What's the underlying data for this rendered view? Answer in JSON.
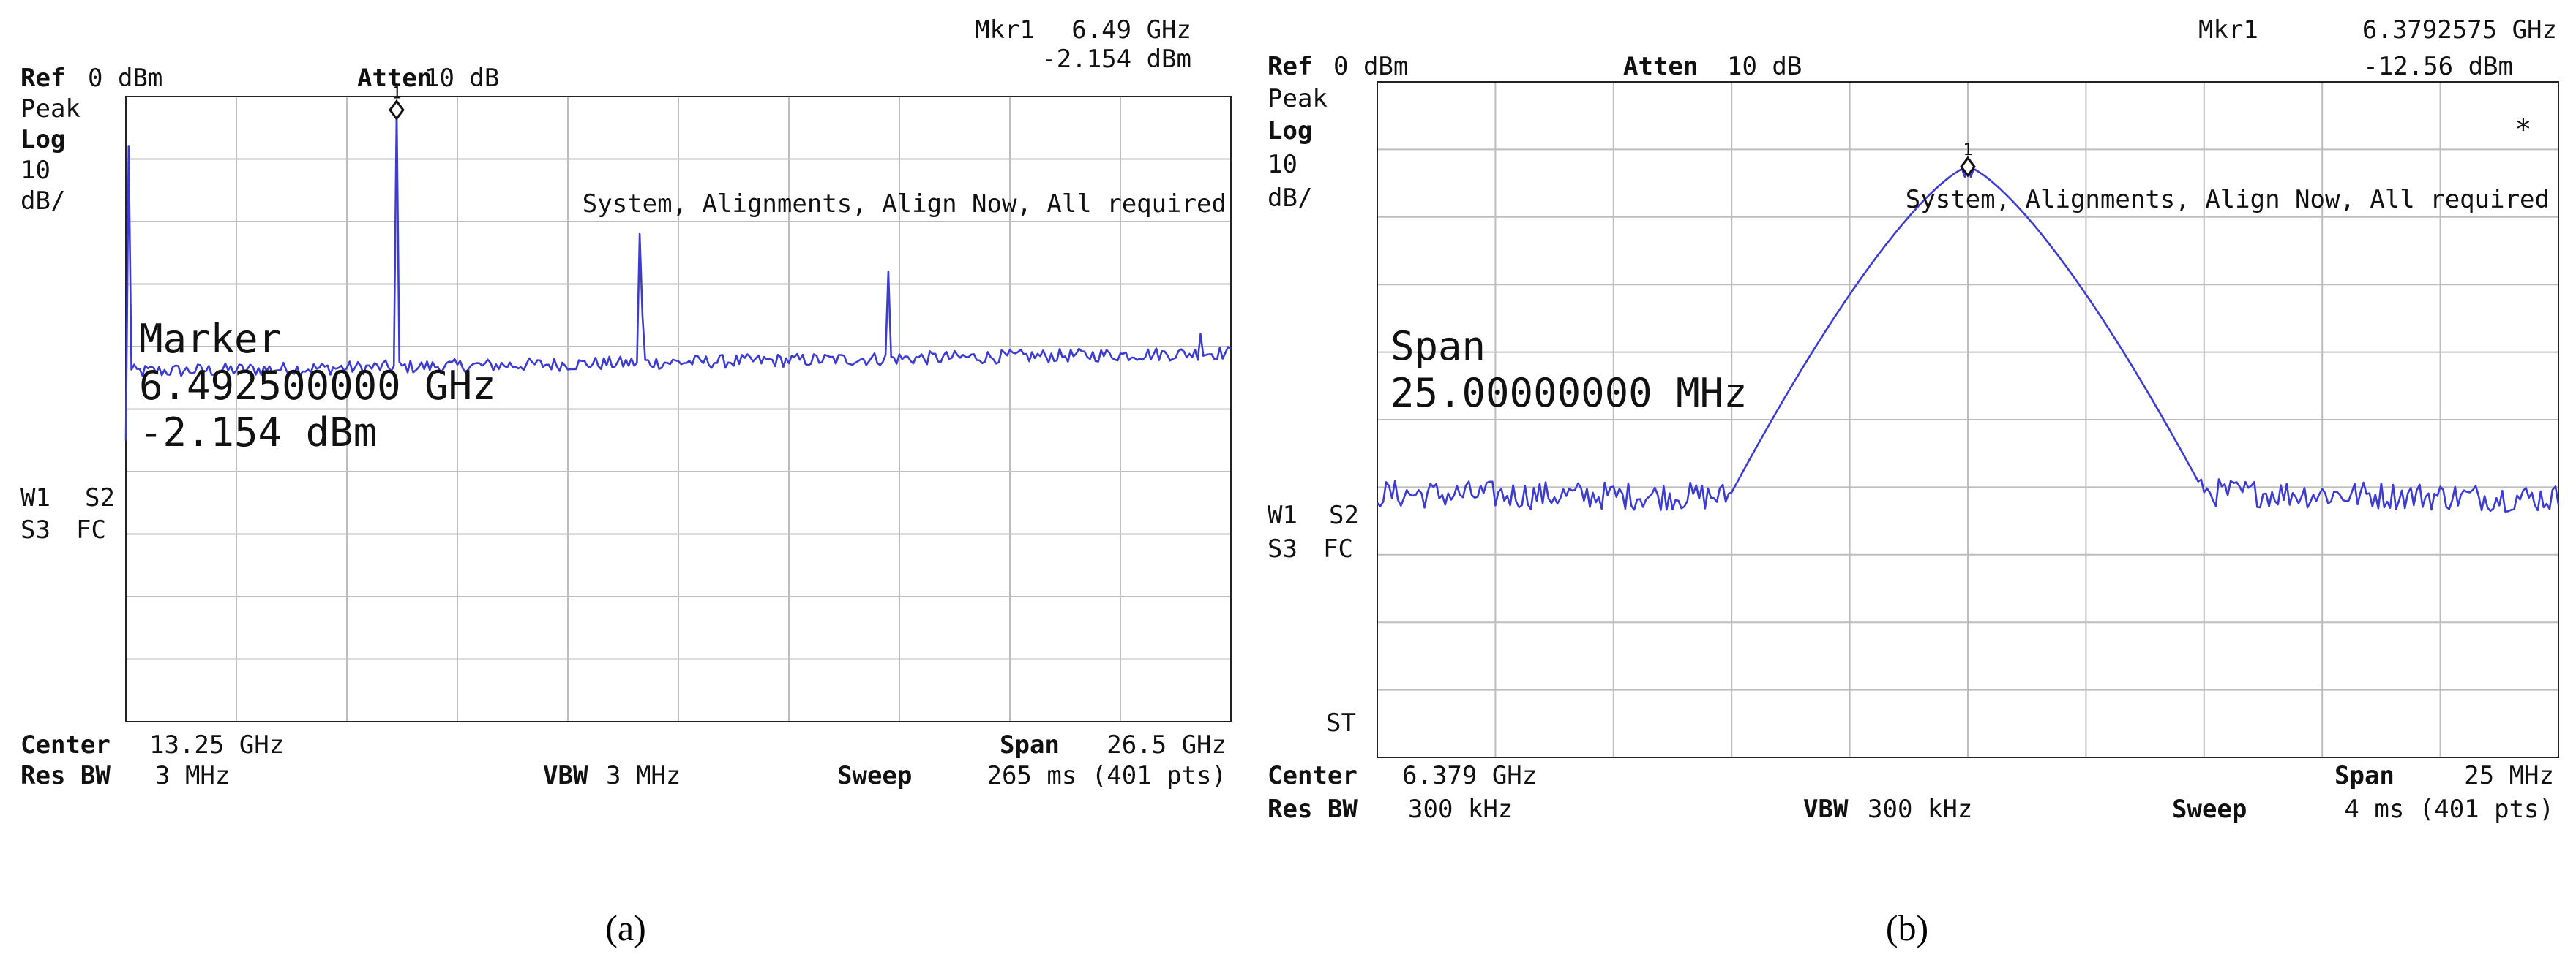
{
  "panels": [
    {
      "id": "a",
      "caption": "(a)",
      "header": {
        "mkr_label": "Mkr1",
        "mkr_freq": "6.49 GHz",
        "mkr_amp": "-2.154 dBm",
        "ref_label": "Ref",
        "ref_value": "0 dBm",
        "atten_label": "Atten",
        "atten_value": "10 dB",
        "det": "Peak",
        "scale_label": "Log",
        "scale_value": "10",
        "scale_unit": "dB/",
        "message": "System, Alignments, Align Now, All required",
        "star": ""
      },
      "side": {
        "w1": "W1",
        "s2": "S2",
        "s3": "S3",
        "fc": "FC",
        "st": ""
      },
      "overlay": {
        "line1": "Marker",
        "line2": "6.492500000 GHz",
        "line3": "-2.154 dBm"
      },
      "footer": {
        "center_label": "Center",
        "center_value": "13.25 GHz",
        "span_label": "Span",
        "span_value": "26.5 GHz",
        "rbw_label": "Res BW",
        "rbw_value": "3 MHz",
        "vbw_label": "VBW",
        "vbw_value": "3 MHz",
        "sweep_label": "Sweep",
        "sweep_value": "265 ms (401 pts)"
      },
      "marker_number": "1"
    },
    {
      "id": "b",
      "caption": "(b)",
      "header": {
        "mkr_label": "Mkr1",
        "mkr_freq": "6.3792575 GHz",
        "mkr_amp": "-12.56 dBm",
        "ref_label": "Ref",
        "ref_value": "0 dBm",
        "atten_label": "Atten",
        "atten_value": "10 dB",
        "det": "Peak",
        "scale_label": "Log",
        "scale_value": "10",
        "scale_unit": "dB/",
        "message": "System, Alignments, Align Now, All required",
        "star": "*"
      },
      "side": {
        "w1": "W1",
        "s2": "S2",
        "s3": "S3",
        "fc": "FC",
        "st": "ST"
      },
      "overlay": {
        "line1": "Span",
        "line2": "25.00000000 MHz",
        "line3": ""
      },
      "footer": {
        "center_label": "Center",
        "center_value": "6.379 GHz",
        "span_label": "Span",
        "span_value": "25 MHz",
        "rbw_label": "Res BW",
        "rbw_value": "300 kHz",
        "vbw_label": "VBW",
        "vbw_value": "300 kHz",
        "sweep_label": "Sweep",
        "sweep_value": "4 ms (401 pts)"
      },
      "marker_number": "1"
    }
  ],
  "colors": {
    "trace": "#3c3cd2",
    "grid": "#bdbdbd",
    "frame": "#222222",
    "text": "#111111"
  },
  "chart_data": [
    {
      "type": "line",
      "panel": "a",
      "x_unit": "GHz",
      "y_unit": "dBm",
      "xlim": [
        0,
        26.5
      ],
      "ylim": [
        -100,
        0
      ],
      "grid": true,
      "noise_floor_dbm": -44,
      "marker": {
        "x": 6.4925,
        "y": -2.154
      },
      "peaks": [
        {
          "x": 0.05,
          "y": -8
        },
        {
          "x": 6.4925,
          "y": -2.154
        },
        {
          "x": 12.4,
          "y": -35
        },
        {
          "x": 12.35,
          "y": -22
        },
        {
          "x": 18.3,
          "y": -28
        },
        {
          "x": 25.8,
          "y": -38
        }
      ]
    },
    {
      "type": "line",
      "panel": "b",
      "x_unit": "MHz offset from center",
      "y_unit": "dBm",
      "xlim": [
        -12.5,
        12.5
      ],
      "ylim": [
        -100,
        0
      ],
      "grid": true,
      "noise_floor_dbm": -61,
      "marker": {
        "x": 0.0,
        "y": -12.56
      },
      "peak_x": 0.0,
      "peak_dbm": -12.56,
      "peak_half_width_mhz": 2.8
    }
  ]
}
